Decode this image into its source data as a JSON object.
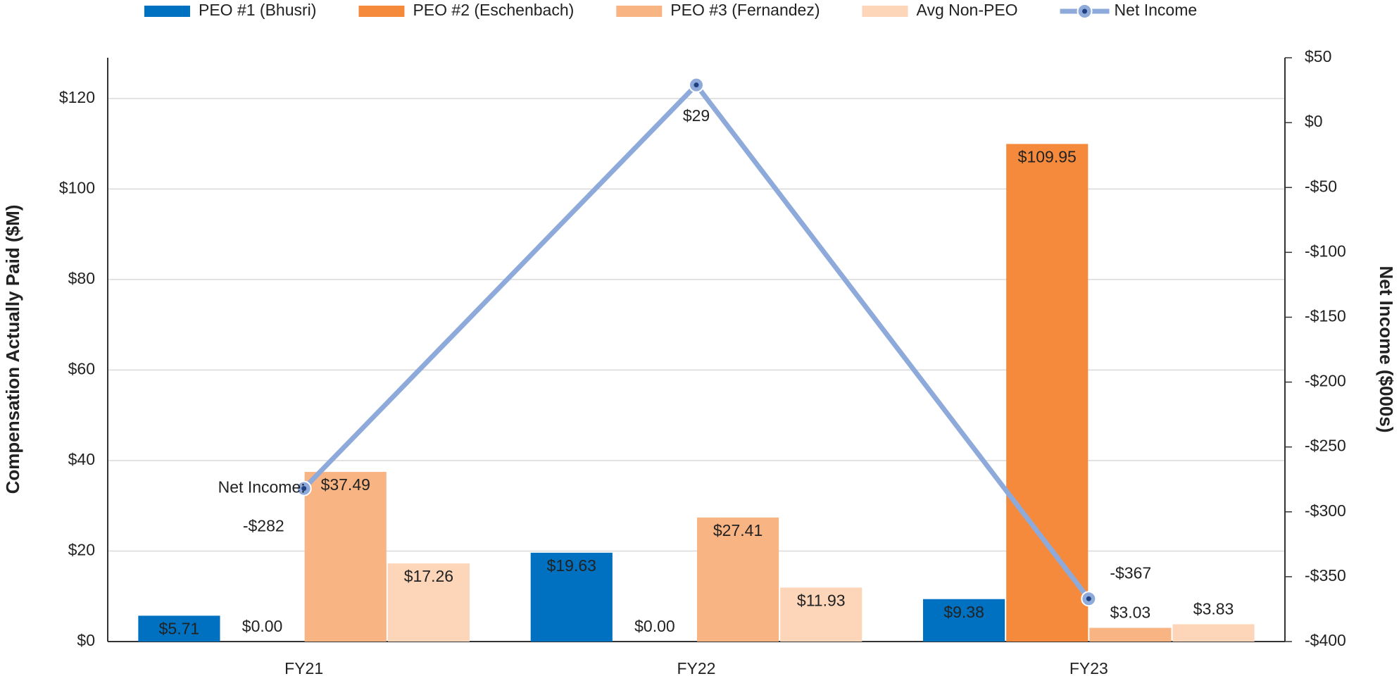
{
  "chart_data": {
    "type": "bar",
    "categories": [
      "FY21",
      "FY22",
      "FY23"
    ],
    "y_label": "Compensation Actually Paid ($M)",
    "y2_label": "Net Income ($000s)",
    "ylim": [
      0,
      129
    ],
    "yticks": [
      {
        "value": 0,
        "label": "$0"
      },
      {
        "value": 20,
        "label": "$20"
      },
      {
        "value": 40,
        "label": "$40"
      },
      {
        "value": 60,
        "label": "$60"
      },
      {
        "value": 80,
        "label": "$80"
      },
      {
        "value": 100,
        "label": "$100"
      },
      {
        "value": 120,
        "label": "$120"
      }
    ],
    "y2lim": [
      -400,
      50
    ],
    "y2ticks": [
      {
        "value": -400,
        "label": "-$400"
      },
      {
        "value": -350,
        "label": "-$350"
      },
      {
        "value": -300,
        "label": "-$300"
      },
      {
        "value": -250,
        "label": "-$250"
      },
      {
        "value": -200,
        "label": "-$200"
      },
      {
        "value": -150,
        "label": "-$150"
      },
      {
        "value": -100,
        "label": "-$100"
      },
      {
        "value": -50,
        "label": "-$50"
      },
      {
        "value": 0,
        "label": "$0"
      },
      {
        "value": 50,
        "label": "$50"
      }
    ],
    "grid": true,
    "legend": "top",
    "series": [
      {
        "name": "PEO #1 (Bhusri)",
        "color": "#0070c0",
        "values": [
          5.71,
          19.63,
          9.38
        ],
        "value_labels": [
          "$5.71",
          "$19.63",
          "$9.38"
        ]
      },
      {
        "name": "PEO #2 (Eschenbach)",
        "color": "#f58a3c",
        "values": [
          0,
          0,
          109.95
        ],
        "value_labels": [
          "$0.00",
          "$0.00",
          "$109.95"
        ]
      },
      {
        "name": "PEO #3 (Fernandez)",
        "color": "#f9b483",
        "values": [
          37.49,
          27.41,
          3.03
        ],
        "value_labels": [
          "$37.49",
          "$27.41",
          "$3.03"
        ]
      },
      {
        "name": "Avg Non-PEO",
        "color": "#fdd5b8",
        "values": [
          17.26,
          11.93,
          3.83
        ],
        "value_labels": [
          "$17.26",
          "$11.93",
          "$3.83"
        ]
      },
      {
        "name": "Net Income",
        "type": "line",
        "axis": "y2",
        "color": "#8eaadb",
        "label_color": "#1f6fbf",
        "values": [
          -282,
          29,
          -367
        ],
        "value_labels": [
          "-$282",
          "$29",
          "-$367"
        ]
      }
    ],
    "annotations": [
      "Net Income:"
    ]
  }
}
